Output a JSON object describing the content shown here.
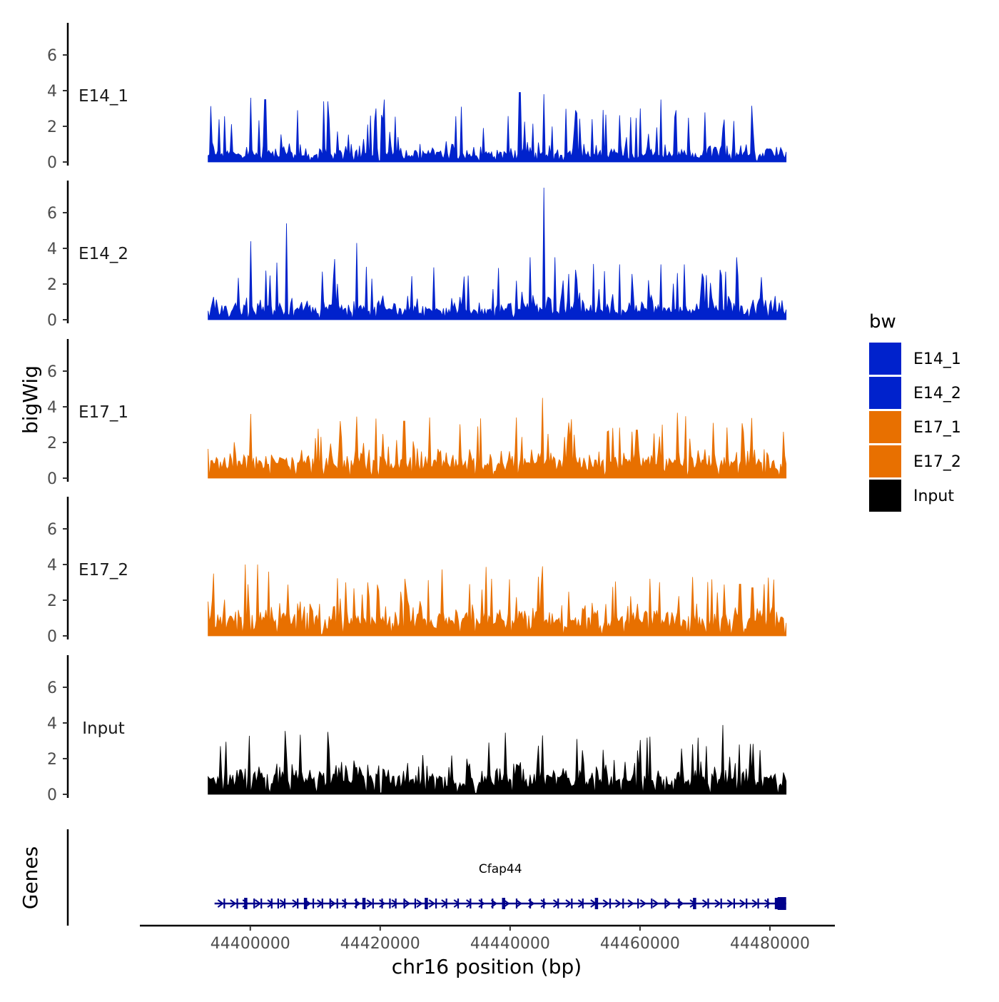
{
  "chart_data": {
    "type": "area",
    "ylabel": "bigWig",
    "xlabel": "chr16 position (bp)",
    "genes_label": "Genes",
    "xlim": [
      44383000,
      44490000
    ],
    "data_range": [
      44393500,
      44482500
    ],
    "x_ticks": [
      44400000,
      44420000,
      44440000,
      44460000,
      44480000
    ],
    "x_tick_labels": [
      "44400000",
      "44420000",
      "44440000",
      "44460000",
      "44480000"
    ],
    "ylim": [
      0,
      8
    ],
    "y_ticks": [
      0,
      2,
      4,
      6
    ],
    "y_tick_labels": [
      "0",
      "2",
      "4",
      "6"
    ],
    "legend": {
      "title": "bw",
      "position": "right",
      "entries": [
        {
          "label": "E14_1",
          "color": "#0022CC"
        },
        {
          "label": "E14_2",
          "color": "#0022CC"
        },
        {
          "label": "E17_1",
          "color": "#E87000"
        },
        {
          "label": "E17_2",
          "color": "#E87000"
        },
        {
          "label": "Input",
          "color": "#000000"
        }
      ]
    },
    "series": [
      {
        "name": "E14_1",
        "color": "#0022CC",
        "baseline": 0.3,
        "noise": 0.55,
        "peak_rate": 0.1,
        "peaks": [
          [
            44400000,
            3.6
          ],
          [
            44402300,
            3.5
          ],
          [
            44411300,
            3.4
          ],
          [
            44412000,
            3.4
          ],
          [
            44419400,
            3.0
          ],
          [
            44420700,
            3.5
          ],
          [
            44432500,
            3.1
          ],
          [
            44441500,
            3.9
          ],
          [
            44445200,
            3.8
          ],
          [
            44450000,
            2.9
          ],
          [
            44460000,
            3.0
          ],
          [
            44463200,
            3.5
          ],
          [
            44465600,
            2.9
          ],
          [
            44474500,
            2.3
          ]
        ]
      },
      {
        "name": "E14_2",
        "color": "#0022CC",
        "baseline": 0.4,
        "noise": 0.7,
        "peak_rate": 0.12,
        "peaks": [
          [
            44400000,
            4.4
          ],
          [
            44405500,
            5.4
          ],
          [
            44404000,
            3.2
          ],
          [
            44413000,
            3.4
          ],
          [
            44416300,
            4.3
          ],
          [
            44438300,
            2.9
          ],
          [
            44443100,
            3.5
          ],
          [
            44445200,
            7.4
          ],
          [
            44446900,
            3.5
          ],
          [
            44450000,
            2.8
          ],
          [
            44456800,
            3.1
          ],
          [
            44463200,
            3.1
          ],
          [
            44466800,
            3.1
          ],
          [
            44474800,
            3.5
          ]
        ]
      },
      {
        "name": "E17_1",
        "color": "#E87000",
        "baseline": 0.7,
        "noise": 0.7,
        "peak_rate": 0.1,
        "peaks": [
          [
            44400000,
            3.6
          ],
          [
            44413800,
            3.2
          ],
          [
            44423700,
            3.2
          ],
          [
            44427600,
            3.4
          ],
          [
            44435000,
            2.9
          ],
          [
            44441000,
            3.4
          ],
          [
            44445000,
            4.5
          ],
          [
            44459500,
            2.7
          ],
          [
            44463500,
            3.0
          ],
          [
            44471300,
            3.1
          ]
        ]
      },
      {
        "name": "E17_2",
        "color": "#E87000",
        "baseline": 0.7,
        "noise": 0.8,
        "peak_rate": 0.12,
        "peaks": [
          [
            44399200,
            4.0
          ],
          [
            44401200,
            4.0
          ],
          [
            44402800,
            3.6
          ],
          [
            44414600,
            3.0
          ],
          [
            44418000,
            3.0
          ],
          [
            44423800,
            3.2
          ],
          [
            44433800,
            2.9
          ],
          [
            44437200,
            3.2
          ],
          [
            44445000,
            3.9
          ],
          [
            44461500,
            3.2
          ],
          [
            44468000,
            3.3
          ],
          [
            44475400,
            2.9
          ],
          [
            44477300,
            2.7
          ]
        ]
      },
      {
        "name": "Input",
        "color": "#000000",
        "baseline": 0.7,
        "noise": 0.8,
        "peak_rate": 0.08,
        "peaks": [
          [
            44395500,
            2.7
          ],
          [
            44405500,
            2.3
          ],
          [
            44412000,
            3.5
          ],
          [
            44426500,
            2.2
          ],
          [
            44436800,
            2.9
          ],
          [
            44445000,
            3.3
          ],
          [
            44450300,
            3.1
          ],
          [
            44468000,
            2.8
          ],
          [
            44470300,
            2.7
          ],
          [
            44477000,
            2.6
          ]
        ]
      }
    ],
    "gene": {
      "name": "Cfap44",
      "strand": "+",
      "start": 44394500,
      "end": 44482500,
      "exons": [
        44396000,
        44398000,
        44399300,
        44400600,
        44401700,
        44403300,
        44404300,
        44405300,
        44407300,
        44408500,
        44409700,
        44411100,
        44412300,
        44413400,
        44414600,
        44416300,
        44417500,
        44418900,
        44420300,
        44421500,
        44422400,
        44423700,
        44425400,
        44427100,
        44428600,
        44430200,
        44432000,
        44433900,
        44435600,
        44437300,
        44439000,
        44441000,
        44443100,
        44445200,
        44447400,
        44449500,
        44451200,
        44453300,
        44455400,
        44457400,
        44459700,
        44461800,
        44463900,
        44466000,
        44468400,
        44470500,
        44472500,
        44474500,
        44476400,
        44478200,
        44479700,
        44481000
      ]
    }
  }
}
